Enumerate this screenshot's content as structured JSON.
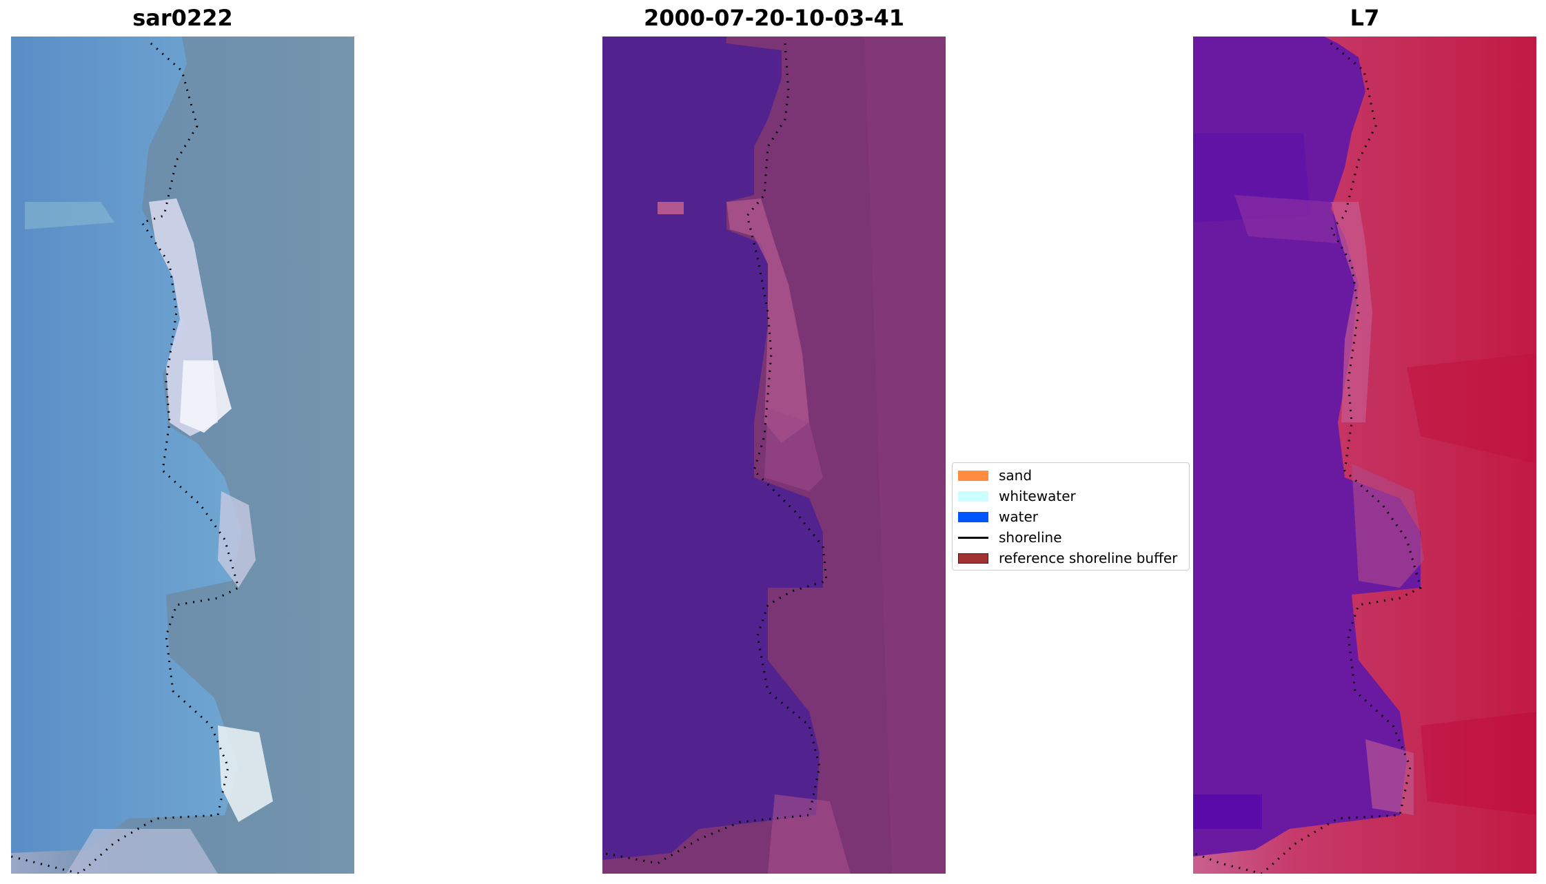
{
  "panels": [
    {
      "title": "sar0222"
    },
    {
      "title": "2000-07-20-10-03-41"
    },
    {
      "title": "L7"
    }
  ],
  "legend": {
    "items": [
      {
        "label": "sand",
        "kind": "patch",
        "color": "#ff8c3f"
      },
      {
        "label": "whitewater",
        "kind": "patch",
        "color": "#ccffff"
      },
      {
        "label": "water",
        "kind": "patch",
        "color": "#0055ff"
      },
      {
        "label": "shoreline",
        "kind": "line",
        "color": "#000000"
      },
      {
        "label": "reference shoreline buffer",
        "kind": "patch",
        "color": "#a03232"
      }
    ]
  },
  "colors": {
    "water_class": "#52238f",
    "land_class": "#7b3474",
    "rgb_water": "#5f95c8",
    "rgb_land": "#6a8ea8",
    "mndwi_water": "#6611a0",
    "mndwi_land": "#c81e4a"
  }
}
